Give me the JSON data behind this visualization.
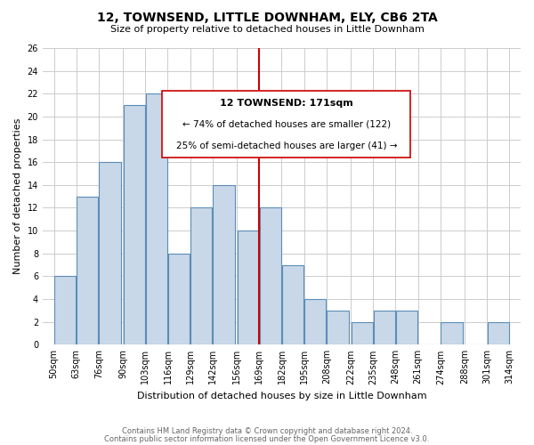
{
  "title": "12, TOWNSEND, LITTLE DOWNHAM, ELY, CB6 2TA",
  "subtitle": "Size of property relative to detached houses in Little Downham",
  "xlabel": "Distribution of detached houses by size in Little Downham",
  "ylabel": "Number of detached properties",
  "tick_labels": [
    "50sqm",
    "63sqm",
    "76sqm",
    "90sqm",
    "103sqm",
    "116sqm",
    "129sqm",
    "142sqm",
    "156sqm",
    "169sqm",
    "182sqm",
    "195sqm",
    "208sqm",
    "222sqm",
    "235sqm",
    "248sqm",
    "261sqm",
    "274sqm",
    "288sqm",
    "301sqm",
    "314sqm"
  ],
  "tick_positions": [
    50,
    63,
    76,
    90,
    103,
    116,
    129,
    142,
    156,
    169,
    182,
    195,
    208,
    222,
    235,
    248,
    261,
    274,
    288,
    301,
    314
  ],
  "values": [
    6,
    13,
    16,
    21,
    22,
    8,
    12,
    14,
    10,
    12,
    7,
    4,
    3,
    2,
    3,
    3,
    0,
    2,
    0,
    2
  ],
  "bar_left_edges": [
    50,
    63,
    76,
    90,
    103,
    116,
    129,
    142,
    156,
    169,
    182,
    195,
    208,
    222,
    235,
    248,
    261,
    274,
    288,
    301
  ],
  "bin_width": 13,
  "property_line_x": 169,
  "bar_color": "#c8d8e8",
  "bar_edge_color": "#5b8db8",
  "grid_color": "#cccccc",
  "red_line_color": "#cc0000",
  "annotation_box_edge": "#cc0000",
  "ylim_max": 26,
  "yticks": [
    0,
    2,
    4,
    6,
    8,
    10,
    12,
    14,
    16,
    18,
    20,
    22,
    24,
    26
  ],
  "annotation_title": "12 TOWNSEND: 171sqm",
  "annotation_line1": "← 74% of detached houses are smaller (122)",
  "annotation_line2": "25% of semi-detached houses are larger (41) →",
  "footer1": "Contains HM Land Registry data © Crown copyright and database right 2024.",
  "footer2": "Contains public sector information licensed under the Open Government Licence v3.0.",
  "background_color": "#ffffff"
}
